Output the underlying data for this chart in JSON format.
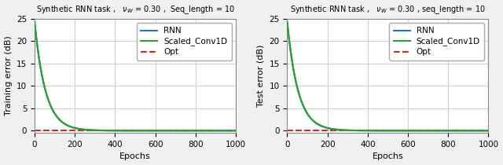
{
  "title_left": "Synthetic RNN task ,   $\\nu_W$ = 0.30 ,  Seq_length = 10",
  "title_right": "Synthetic RNN task ,   $\\nu_W$ = 0.30 , seq_length = 10",
  "xlabel": "Epochs",
  "ylabel_left": "Training error (dB)",
  "ylabel_right": "Test error (dB)",
  "xlim": [
    0,
    1000
  ],
  "ylim": [
    -0.5,
    25
  ],
  "yticks": [
    0,
    5,
    10,
    15,
    20,
    25
  ],
  "xticks": [
    0,
    200,
    400,
    600,
    800,
    1000
  ],
  "rnn_color": "#1f77b4",
  "conv_color": "#2ca02c",
  "opt_color": "#d62728",
  "opt_value": 0.0,
  "n_epochs": 1001,
  "decay_rate": 0.0185,
  "start_value": 24.2,
  "legend_labels": [
    "RNN",
    "Scaled_Conv1D",
    "Opt"
  ],
  "figure_facecolor": "#f0f0f0",
  "axes_facecolor": "#ffffff",
  "grid_color": "#d0d0d0",
  "title_fontsize": 7.0,
  "label_fontsize": 8.0,
  "tick_fontsize": 7.5,
  "legend_fontsize": 7.5,
  "linewidth": 1.5
}
